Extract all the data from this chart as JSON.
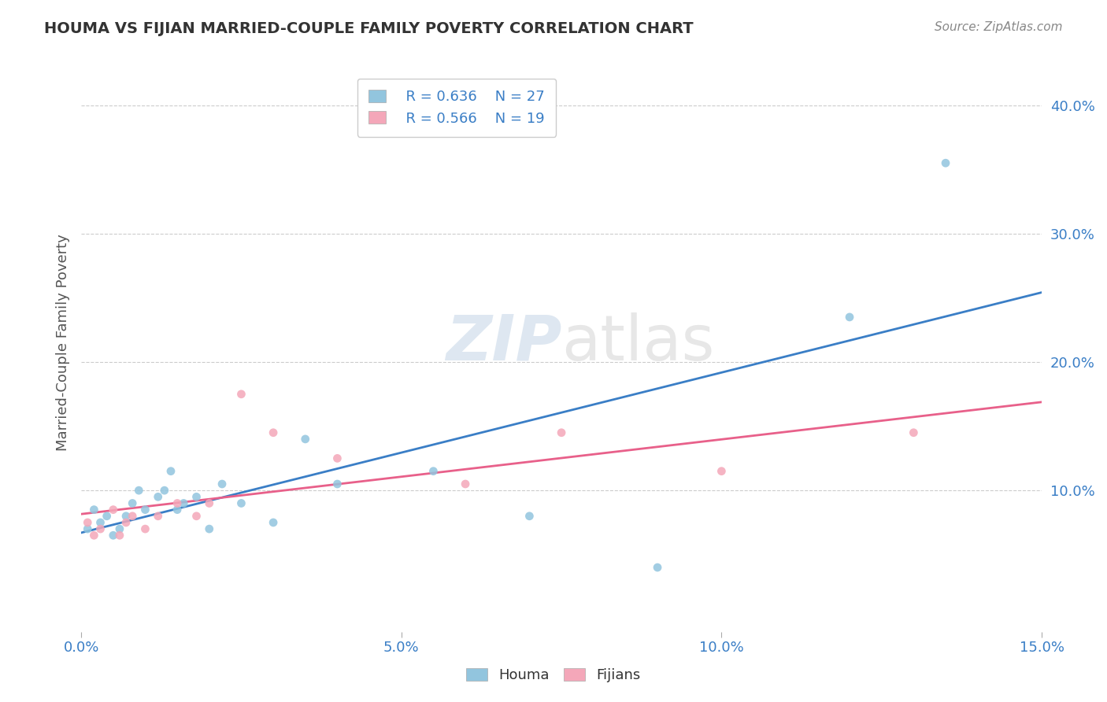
{
  "title": "HOUMA VS FIJIAN MARRIED-COUPLE FAMILY POVERTY CORRELATION CHART",
  "source_text": "Source: ZipAtlas.com",
  "xlabel": "",
  "ylabel": "Married-Couple Family Poverty",
  "xlim": [
    0.0,
    0.15
  ],
  "ylim": [
    -0.01,
    0.44
  ],
  "xtick_labels": [
    "0.0%",
    "5.0%",
    "10.0%",
    "15.0%"
  ],
  "xtick_vals": [
    0.0,
    0.05,
    0.1,
    0.15
  ],
  "ytick_labels": [
    "10.0%",
    "20.0%",
    "30.0%",
    "40.0%"
  ],
  "ytick_vals": [
    0.1,
    0.2,
    0.3,
    0.4
  ],
  "houma_color": "#92c5de",
  "fijian_color": "#f4a7b9",
  "houma_line_color": "#3a7ec6",
  "fijian_line_color": "#e8608a",
  "legend_r_houma": "R = 0.636",
  "legend_n_houma": "N = 27",
  "legend_r_fijian": "R = 0.566",
  "legend_n_fijian": "N = 19",
  "watermark_zip": "ZIP",
  "watermark_atlas": "atlas",
  "houma_x": [
    0.001,
    0.002,
    0.003,
    0.004,
    0.005,
    0.006,
    0.007,
    0.008,
    0.009,
    0.01,
    0.012,
    0.013,
    0.014,
    0.015,
    0.016,
    0.018,
    0.02,
    0.022,
    0.025,
    0.03,
    0.035,
    0.04,
    0.055,
    0.07,
    0.09,
    0.12,
    0.135
  ],
  "houma_y": [
    0.07,
    0.085,
    0.075,
    0.08,
    0.065,
    0.07,
    0.08,
    0.09,
    0.1,
    0.085,
    0.095,
    0.1,
    0.115,
    0.085,
    0.09,
    0.095,
    0.07,
    0.105,
    0.09,
    0.075,
    0.14,
    0.105,
    0.115,
    0.08,
    0.04,
    0.235,
    0.355
  ],
  "fijian_x": [
    0.001,
    0.002,
    0.003,
    0.005,
    0.006,
    0.007,
    0.008,
    0.01,
    0.012,
    0.015,
    0.018,
    0.02,
    0.025,
    0.03,
    0.04,
    0.06,
    0.075,
    0.1,
    0.13
  ],
  "fijian_y": [
    0.075,
    0.065,
    0.07,
    0.085,
    0.065,
    0.075,
    0.08,
    0.07,
    0.08,
    0.09,
    0.08,
    0.09,
    0.175,
    0.145,
    0.125,
    0.105,
    0.145,
    0.115,
    0.145
  ],
  "background_color": "#ffffff",
  "grid_color": "#cccccc"
}
